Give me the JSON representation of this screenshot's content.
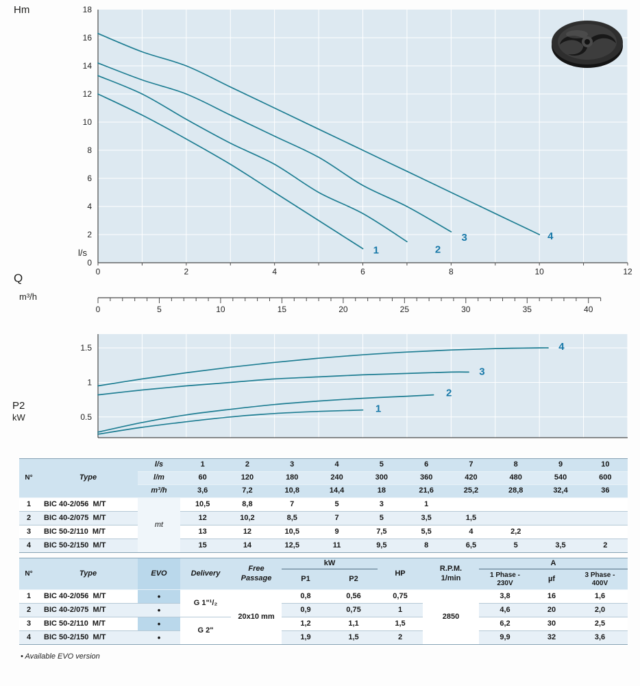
{
  "page": {
    "footnote": "• Available EVO version"
  },
  "labels": {
    "hm": "Hm",
    "ls": "l/s",
    "q": "Q",
    "m3h": "m³/h",
    "p2": "P2",
    "kw": "kW"
  },
  "chart_data": [
    {
      "type": "line",
      "title": "Head vs flow rate",
      "ylabel": "Hm",
      "xlabel": "Q (l/s)",
      "x2label": "Q (m³/h)",
      "xlim": [
        0,
        12
      ],
      "ylim": [
        0,
        18
      ],
      "x_ticks": [
        0,
        2,
        4,
        6,
        8,
        10,
        12
      ],
      "y_ticks": [
        0,
        2,
        4,
        6,
        8,
        10,
        12,
        14,
        16,
        18
      ],
      "x_minor_step": 1,
      "x2_ticks": [
        0,
        5,
        10,
        15,
        20,
        25,
        30,
        35,
        40
      ],
      "x2_factor": 3.6,
      "x2_max": 41,
      "grid": true,
      "bg_color": "#dde9f1",
      "line_color": "#1d7d92",
      "label_color": "#1778a8",
      "series": [
        {
          "name": "1",
          "x": [
            0,
            1,
            2,
            3,
            4,
            5,
            6
          ],
          "y": [
            12,
            10.5,
            8.8,
            7,
            5,
            3,
            1
          ],
          "label_at": [
            6.3,
            0.9
          ]
        },
        {
          "name": "2",
          "x": [
            0,
            1,
            2,
            3,
            4,
            5,
            6,
            7
          ],
          "y": [
            13.3,
            12,
            10.2,
            8.5,
            7,
            5,
            3.5,
            1.5
          ],
          "label_at": [
            7.7,
            0.95
          ]
        },
        {
          "name": "3",
          "x": [
            0,
            1,
            2,
            3,
            4,
            5,
            6,
            7,
            8
          ],
          "y": [
            14.2,
            13,
            12,
            10.5,
            9,
            7.5,
            5.5,
            4,
            2.2
          ],
          "label_at": [
            8.3,
            1.8
          ]
        },
        {
          "name": "4",
          "x": [
            0,
            1,
            2,
            3,
            4,
            5,
            6,
            7,
            8,
            9,
            10
          ],
          "y": [
            16.3,
            15,
            14,
            12.5,
            11,
            9.5,
            8,
            6.5,
            5,
            3.5,
            2
          ],
          "label_at": [
            10.25,
            1.9
          ]
        }
      ]
    },
    {
      "type": "line",
      "title": "Absorbed power P2 vs flow rate",
      "ylabel": "P2 (kW)",
      "xlim": [
        0,
        12
      ],
      "ylim": [
        0.2,
        1.7
      ],
      "y_ticks": [
        0.5,
        1,
        1.5
      ],
      "x_minor_step": 1,
      "grid": true,
      "bg_color": "#dde9f1",
      "line_color": "#1d7d92",
      "label_color": "#1778a8",
      "series": [
        {
          "name": "1",
          "x": [
            0,
            1,
            2,
            3,
            4,
            5,
            6
          ],
          "y": [
            0.25,
            0.35,
            0.43,
            0.5,
            0.55,
            0.58,
            0.6
          ],
          "label_at": [
            6.35,
            0.62
          ]
        },
        {
          "name": "2",
          "x": [
            0,
            1,
            2,
            3,
            4,
            5,
            6,
            7,
            7.6
          ],
          "y": [
            0.28,
            0.42,
            0.53,
            0.61,
            0.68,
            0.73,
            0.77,
            0.8,
            0.82
          ],
          "label_at": [
            7.95,
            0.85
          ]
        },
        {
          "name": "3",
          "x": [
            0,
            1,
            2,
            3,
            4,
            5,
            6,
            7,
            8,
            8.4
          ],
          "y": [
            0.82,
            0.89,
            0.95,
            1.0,
            1.05,
            1.08,
            1.11,
            1.13,
            1.15,
            1.15
          ],
          "label_at": [
            8.7,
            1.16
          ]
        },
        {
          "name": "4",
          "x": [
            0,
            1,
            2,
            3,
            4,
            5,
            6,
            7,
            8,
            9,
            10,
            10.2
          ],
          "y": [
            0.95,
            1.05,
            1.14,
            1.22,
            1.29,
            1.35,
            1.4,
            1.44,
            1.47,
            1.49,
            1.5,
            1.5
          ],
          "label_at": [
            10.5,
            1.52
          ]
        }
      ]
    }
  ],
  "table1": {
    "col_headers": {
      "no": "N°",
      "type": "Type",
      "unit_rows": [
        {
          "label": "l/s",
          "values": [
            "1",
            "2",
            "3",
            "4",
            "5",
            "6",
            "7",
            "8",
            "9",
            "10"
          ]
        },
        {
          "label": "l/m",
          "values": [
            "60",
            "120",
            "180",
            "240",
            "300",
            "360",
            "420",
            "480",
            "540",
            "600"
          ]
        },
        {
          "label": "m³/h",
          "values": [
            "3,6",
            "7,2",
            "10,8",
            "14,4",
            "18",
            "21,6",
            "25,2",
            "28,8",
            "32,4",
            "36"
          ]
        }
      ],
      "unit_data_label": "mt"
    },
    "rows": [
      {
        "no": "1",
        "type": "BIC 40-2/056  M/T",
        "values": [
          "10,5",
          "8,8",
          "7",
          "5",
          "3",
          "1",
          "",
          "",
          "",
          ""
        ]
      },
      {
        "no": "2",
        "type": "BIC 40-2/075  M/T",
        "values": [
          "12",
          "10,2",
          "8,5",
          "7",
          "5",
          "3,5",
          "1,5",
          "",
          "",
          ""
        ]
      },
      {
        "no": "3",
        "type": "BIC 50-2/110  M/T",
        "values": [
          "13",
          "12",
          "10,5",
          "9",
          "7,5",
          "5,5",
          "4",
          "2,2",
          "",
          ""
        ]
      },
      {
        "no": "4",
        "type": "BIC 50-2/150  M/T",
        "values": [
          "15",
          "14",
          "12,5",
          "11",
          "9,5",
          "8",
          "6,5",
          "5",
          "3,5",
          "2"
        ]
      }
    ]
  },
  "table2": {
    "headers": {
      "no": "N°",
      "type": "Type",
      "evo": "EVO",
      "delivery": "Delivery",
      "free_passage": "Free Passage",
      "kw": "kW",
      "p1": "P1",
      "p2": "P2",
      "hp": "HP",
      "rpm": "R.P.M.\n1/min",
      "a": "A",
      "phase1": "1 Phase -\n230V",
      "uf": "µf",
      "phase3": "3 Phase -\n400V"
    },
    "shared": {
      "delivery_rows_1_2": "G 1\"¹/₂",
      "delivery_rows_3_4": "G 2\"",
      "free_passage": "20x10 mm",
      "rpm": "2850"
    },
    "rows": [
      {
        "no": "1",
        "type": "BIC 40-2/056  M/T",
        "evo": "•",
        "p1": "0,8",
        "p2": "0,56",
        "hp": "0,75",
        "a_1phase": "3,8",
        "uf": "16",
        "a_3phase": "1,6"
      },
      {
        "no": "2",
        "type": "BIC 40-2/075  M/T",
        "evo": "•",
        "p1": "0,9",
        "p2": "0,75",
        "hp": "1",
        "a_1phase": "4,6",
        "uf": "20",
        "a_3phase": "2,0"
      },
      {
        "no": "3",
        "type": "BIC 50-2/110  M/T",
        "evo": "•",
        "p1": "1,2",
        "p2": "1,1",
        "hp": "1,5",
        "a_1phase": "6,2",
        "uf": "30",
        "a_3phase": "2,5"
      },
      {
        "no": "4",
        "type": "BIC 50-2/150  M/T",
        "evo": "•",
        "p1": "1,9",
        "p2": "1,5",
        "hp": "2",
        "a_1phase": "9,9",
        "uf": "32",
        "a_3phase": "3,6"
      }
    ]
  }
}
